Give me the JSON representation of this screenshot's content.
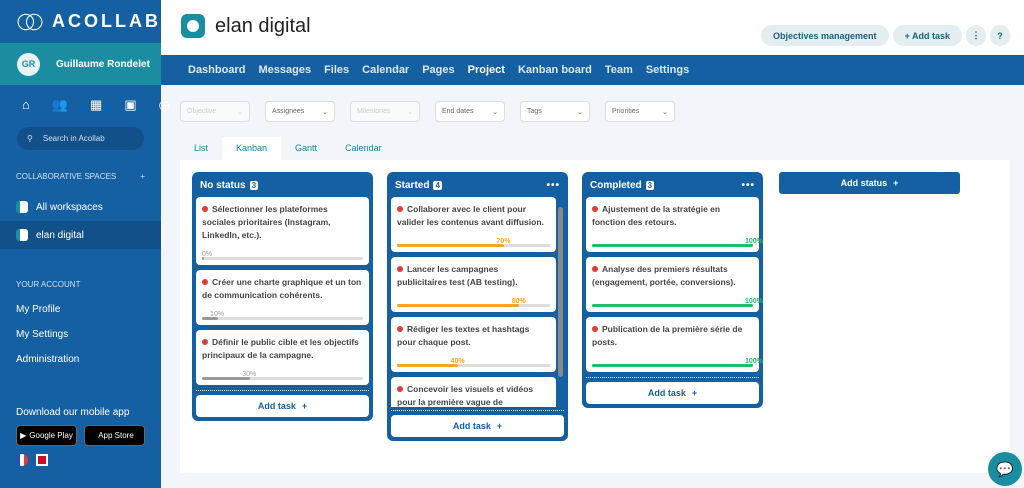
{
  "brand": "ACOLLAB",
  "user": {
    "initials": "GR",
    "name": "Guillaume Rondelet"
  },
  "search_placeholder": "Search in Acollab",
  "spaces": {
    "title": "COLLABORATIVE SPACES",
    "items": [
      "All workspaces",
      "elan digital"
    ]
  },
  "account": {
    "title": "YOUR ACCOUNT",
    "items": [
      "My Profile",
      "My Settings",
      "Administration"
    ]
  },
  "mobile": {
    "title": "Download our mobile app",
    "google": "Google Play",
    "apple": "App Store"
  },
  "project": {
    "title": "elan digital"
  },
  "header_buttons": {
    "objectives": "Objectives management",
    "add_task": "+ Add task",
    "more": "⋮",
    "help": "?"
  },
  "nav": [
    "Dashboard",
    "Messages",
    "Files",
    "Calendar",
    "Pages",
    "Project",
    "Kanban board",
    "Team",
    "Settings"
  ],
  "nav_active": "Project",
  "filters": [
    "Objective",
    "Assignees",
    "Milestones",
    "End dates",
    "Tags",
    "Priorities"
  ],
  "view_tabs": [
    "List",
    "Kanban",
    "Gantt",
    "Calendar"
  ],
  "columns": [
    {
      "title": "No status",
      "count": "3",
      "cards": [
        {
          "title": "Sélectionner les plateformes sociales prioritaires (Instagram, LinkedIn, etc.).",
          "progress": "0%",
          "value": 0
        },
        {
          "title": "Créer une charte graphique et un ton de communication cohérents.",
          "progress": "10%",
          "value": 10
        },
        {
          "title": "Définir le public cible et les objectifs principaux de la campagne.",
          "progress": "30%",
          "value": 30
        }
      ]
    },
    {
      "title": "Started",
      "count": "4",
      "cards": [
        {
          "title": "Collaborer avec le client pour valider les contenus avant diffusion.",
          "progress": "70%",
          "value": 70
        },
        {
          "title": "Lancer les campagnes publicitaires test (AB testing).",
          "progress": "80%",
          "value": 80
        },
        {
          "title": "Rédiger les textes et hashtags pour chaque post.",
          "progress": "40%",
          "value": 40
        },
        {
          "title": "Concevoir les visuels et vidéos pour la première vague de publications.",
          "progress": "",
          "value": 0
        }
      ]
    },
    {
      "title": "Completed",
      "count": "3",
      "cards": [
        {
          "title": "Ajustement de la stratégie en fonction des retours.",
          "progress": "100%",
          "value": 100
        },
        {
          "title": "Analyse des premiers résultats (engagement, portée, conversions).",
          "progress": "100%",
          "value": 100
        },
        {
          "title": "Publication de la première série de posts.",
          "progress": "100%",
          "value": 100
        }
      ]
    }
  ],
  "add_task": "Add task",
  "add_status": "Add status",
  "colors": {
    "primary": "#1560a3",
    "teal": "#1a8ea0",
    "grey": "#999999",
    "orange": "#f5a623",
    "green": "#1fbf6a",
    "red": "#e53935"
  }
}
